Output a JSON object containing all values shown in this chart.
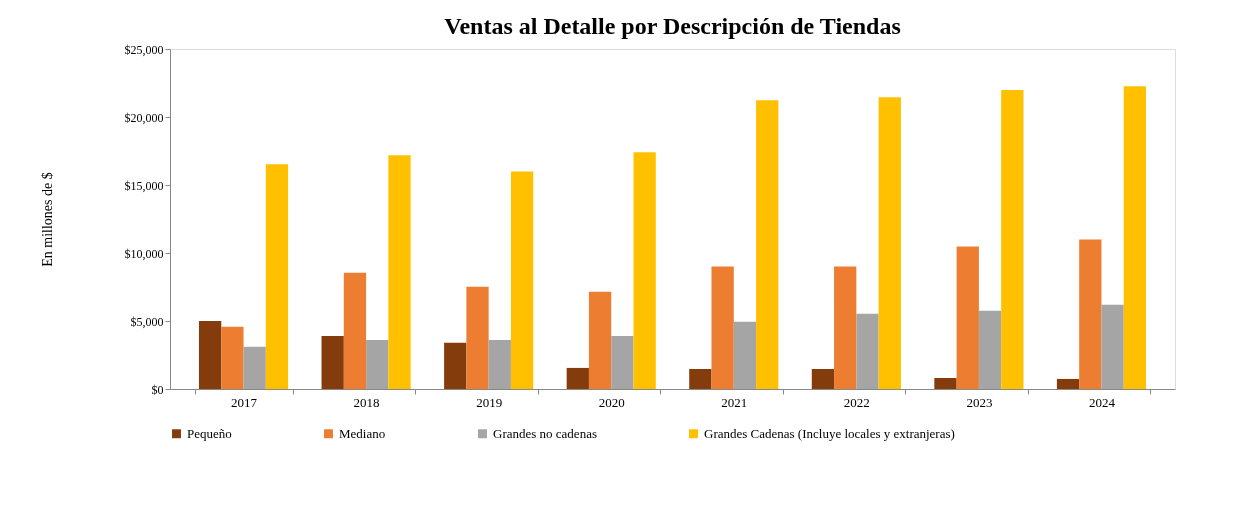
{
  "chart_data": {
    "type": "bar",
    "title": "Ventas al Detalle por Descripción de Tiendas",
    "ylabel": "En millones  de $",
    "categories": [
      "2017",
      "2018",
      "2019",
      "2020",
      "2021",
      "2022",
      "2023",
      "2024"
    ],
    "series": [
      {
        "name": "Pequeño",
        "color": "#843c0c",
        "values": [
          5000,
          3900,
          3400,
          1550,
          1470,
          1470,
          810,
          740
        ]
      },
      {
        "name": "Mediano",
        "color": "#ed7d31",
        "values": [
          4570,
          8550,
          7520,
          7150,
          9000,
          9000,
          10470,
          10990
        ]
      },
      {
        "name": "Grandes no cadenas",
        "color": "#a5a5a5",
        "values": [
          3100,
          3610,
          3610,
          3900,
          4940,
          5530,
          5750,
          6200
        ]
      },
      {
        "name": "Grandes Cadenas (Incluye locales y extranjeras)",
        "color": "#ffc000",
        "values": [
          16520,
          17180,
          16000,
          17400,
          21240,
          21460,
          21980,
          22270
        ]
      }
    ],
    "ylim": [
      0,
      25000
    ],
    "yticks": [
      {
        "value": 0,
        "label": "$0"
      },
      {
        "value": 5000,
        "label": "$5,000"
      },
      {
        "value": 10000,
        "label": "$10,000"
      },
      {
        "value": 15000,
        "label": "$15,000"
      },
      {
        "value": 20000,
        "label": "$20,000"
      },
      {
        "value": 25000,
        "label": "$25,000"
      }
    ],
    "grid": false,
    "legend": "bottom"
  }
}
